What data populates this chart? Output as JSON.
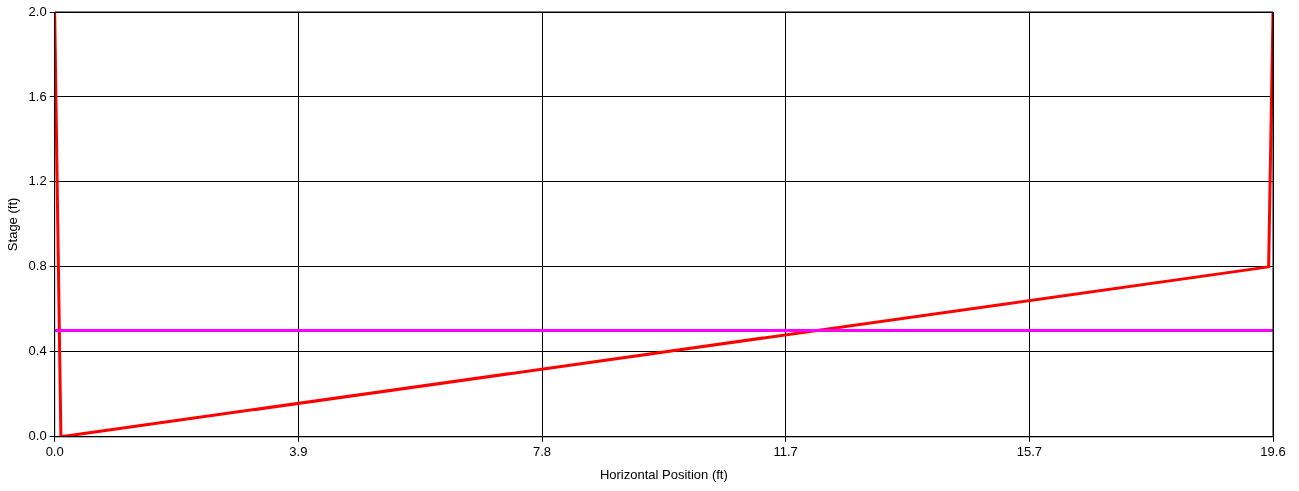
{
  "chart_data": {
    "type": "line",
    "xlabel": "Horizontal Position (ft)",
    "ylabel": "Stage (ft)",
    "x": [
      0,
      0.1,
      19.5,
      19.57
    ],
    "series": [
      {
        "color": "#ff0000",
        "values": [
          2.0,
          0,
          0.8,
          2.0
        ]
      }
    ],
    "xlim": [
      0,
      19.57
    ],
    "xticks": [
      {
        "value": 0,
        "label": "0.0"
      },
      {
        "value": 3.914,
        "label": "3.9"
      },
      {
        "value": 7.828,
        "label": "7.8"
      },
      {
        "value": 11.742,
        "label": "11.7"
      },
      {
        "value": 15.656,
        "label": "15.7"
      },
      {
        "value": 19.57,
        "label": "19.6"
      }
    ],
    "ylim": [
      0,
      2.0
    ],
    "yticks": [
      {
        "value": 0,
        "label": "0.0"
      },
      {
        "value": 0.4,
        "label": "0.4"
      },
      {
        "value": 0.8,
        "label": "0.8"
      },
      {
        "value": 1.2,
        "label": "1.2"
      },
      {
        "value": 1.6,
        "label": "1.6"
      },
      {
        "value": 2.0,
        "label": "2.0"
      }
    ],
    "ref_lines": [
      {
        "axis": "y",
        "value": 0.5,
        "color": "#ff00ff"
      }
    ],
    "grid": true,
    "legend": false,
    "marker": "none",
    "line_style": "solid"
  }
}
